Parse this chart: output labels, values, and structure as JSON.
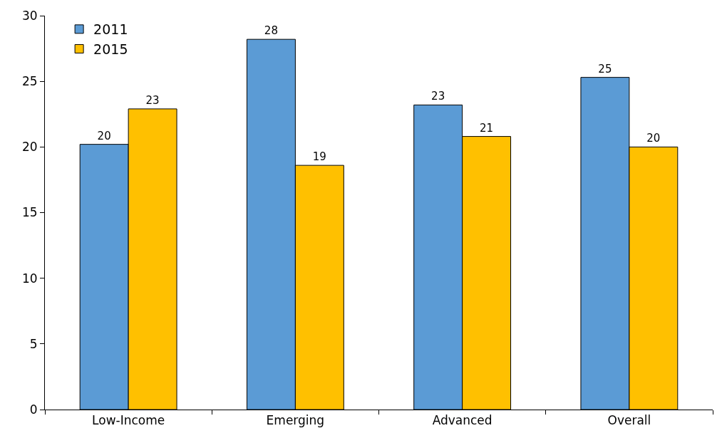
{
  "chart_data": {
    "type": "bar",
    "categories": [
      "Low-Income",
      "Emerging",
      "Advanced",
      "Overall"
    ],
    "series": [
      {
        "name": "2011",
        "color": "#5b9bd5",
        "values": [
          20.2,
          28.2,
          23.2,
          25.3
        ],
        "value_labels": [
          "20",
          "28",
          "23",
          "25"
        ]
      },
      {
        "name": "2015",
        "color": "#ffc000",
        "values": [
          22.9,
          18.6,
          20.8,
          20.0
        ],
        "value_labels": [
          "23",
          "19",
          "21",
          "20"
        ]
      }
    ],
    "ylim": [
      0,
      30
    ],
    "yticks": [
      0,
      5,
      10,
      15,
      20,
      25,
      30
    ],
    "grid": false,
    "legend": "top left"
  }
}
